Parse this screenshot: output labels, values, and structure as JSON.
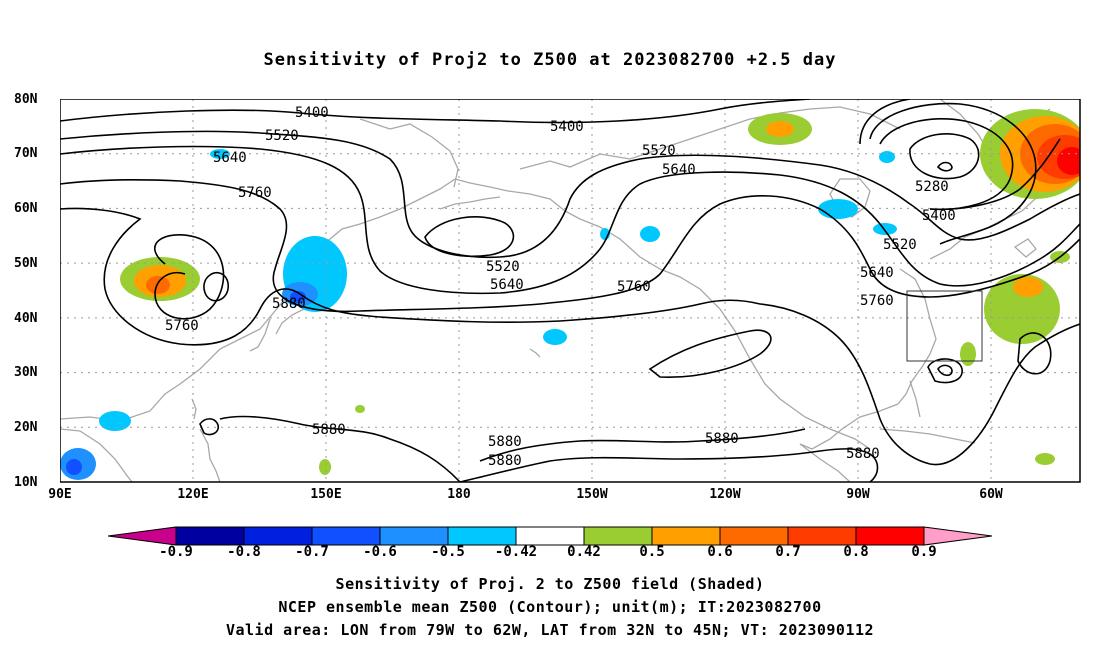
{
  "title": "Sensitivity of Proj2 to Z500 at 2023082700 +2.5 day",
  "lat_ticks": [
    "80N",
    "70N",
    "60N",
    "50N",
    "40N",
    "30N",
    "20N",
    "10N"
  ],
  "lon_ticks": [
    "90E",
    "120E",
    "150E",
    "180",
    "150W",
    "120W",
    "90W",
    "60W"
  ],
  "contour_labels": [
    "5400",
    "5400",
    "5520",
    "5520",
    "5640",
    "5640",
    "5760",
    "5760",
    "5880",
    "5880",
    "5880",
    "5880",
    "5880",
    "5880",
    "5520",
    "5640",
    "5760",
    "5280",
    "5400",
    "5520",
    "5640",
    "5760"
  ],
  "colorbar": {
    "labels": [
      "-0.9",
      "-0.8",
      "-0.7",
      "-0.6",
      "-0.5",
      "-0.42",
      "0.42",
      "0.5",
      "0.6",
      "0.7",
      "0.8",
      "0.9"
    ],
    "colors": [
      "#0000a0",
      "#0020e0",
      "#1050ff",
      "#1e90ff",
      "#00c8ff",
      "#ffffff",
      "#9acd32",
      "#ff9f00",
      "#ff6a00",
      "#ff3c00",
      "#ff0000"
    ],
    "low_color": "#c8008c",
    "high_color": "#ff9ec8"
  },
  "footer": [
    "Sensitivity of Proj. 2 to Z500 field (Shaded)",
    "NCEP ensemble mean Z500 (Contour); unit(m); IT:2023082700",
    "Valid area: LON from 79W to 62W, LAT from 32N to 45N; VT: 2023090112"
  ]
}
